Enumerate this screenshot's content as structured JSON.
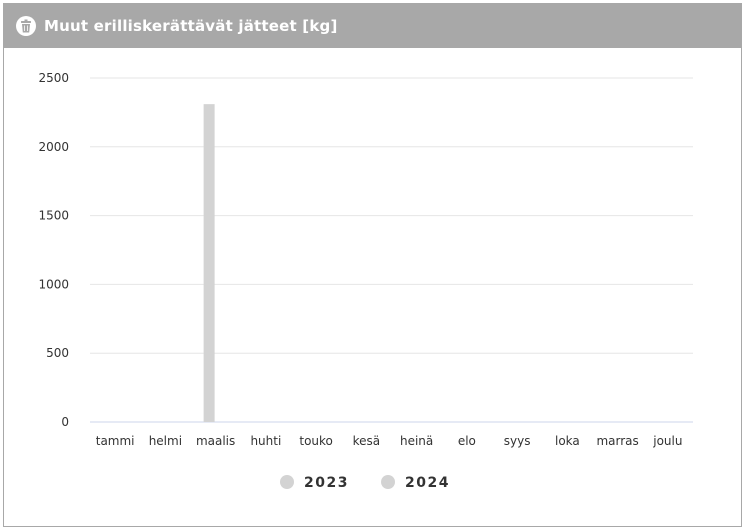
{
  "header": {
    "title": "Muut erilliskerättävät jätteet [kg]",
    "icon": "trash-bin-icon"
  },
  "colors": {
    "header_bg": "#a8a8a8",
    "bar": "#d3d3d3",
    "legend_2023": "#d3d3d3",
    "legend_2024": "#d3d3d3",
    "grid": "#e6e6e6",
    "axis": "#ccd6eb"
  },
  "chart_data": {
    "type": "bar",
    "title": "Muut erilliskerättävät jätteet [kg]",
    "categories": [
      "tammi",
      "helmi",
      "maalis",
      "huhti",
      "touko",
      "kesä",
      "heinä",
      "elo",
      "syys",
      "loka",
      "marras",
      "joulu"
    ],
    "series": [
      {
        "name": "2023",
        "values": [
          0,
          0,
          2310,
          0,
          0,
          0,
          0,
          0,
          0,
          0,
          0,
          0
        ]
      },
      {
        "name": "2024",
        "values": [
          0,
          0,
          0,
          0,
          0,
          0,
          0,
          0,
          0,
          0,
          0,
          0
        ]
      }
    ],
    "yticks": [
      "0",
      "500",
      "1000",
      "1500",
      "2000",
      "2500"
    ],
    "ylim": [
      0,
      2500
    ],
    "grid": true,
    "legend_position": "bottom-center"
  }
}
